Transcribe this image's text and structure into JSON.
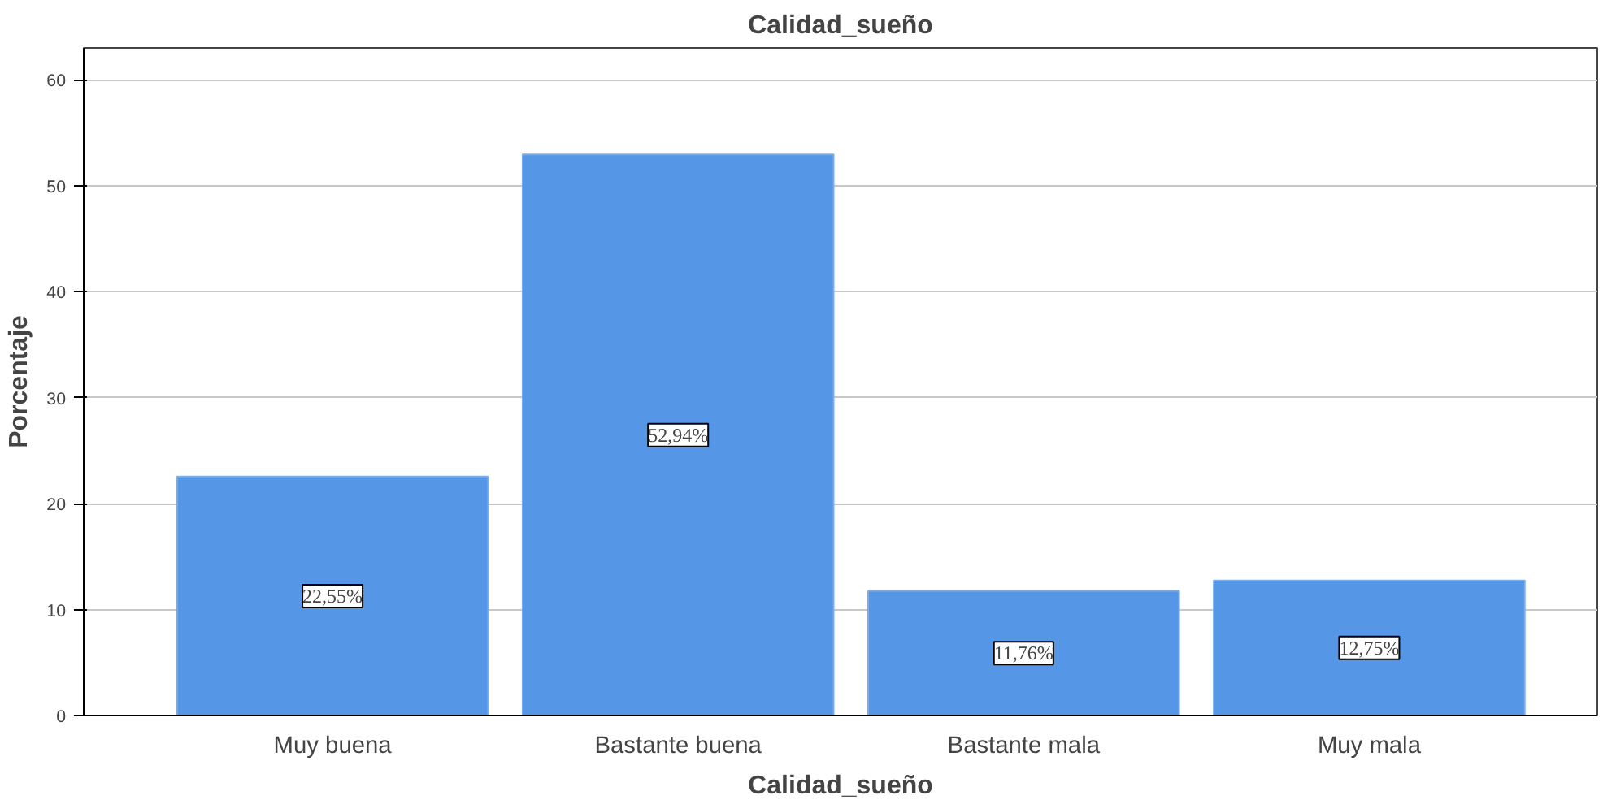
{
  "chart_data": {
    "type": "bar",
    "title": "Calidad_sueño",
    "xlabel": "Calidad_sueño",
    "ylabel": "Porcentaje",
    "categories": [
      "Muy buena",
      "Bastante buena",
      "Bastante mala",
      "Muy mala"
    ],
    "values": [
      22.55,
      52.94,
      11.76,
      12.75
    ],
    "value_labels": [
      "22,55%",
      "52,94%",
      "11,76%",
      "12,75%"
    ],
    "color": "#5596e6",
    "ylim": [
      0,
      63
    ],
    "yticks": [
      0,
      10,
      20,
      30,
      40,
      50,
      60
    ],
    "grid": "y"
  }
}
